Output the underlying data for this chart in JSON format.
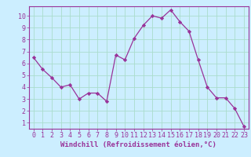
{
  "x": [
    0,
    1,
    2,
    3,
    4,
    5,
    6,
    7,
    8,
    9,
    10,
    11,
    12,
    13,
    14,
    15,
    16,
    17,
    18,
    19,
    20,
    21,
    22,
    23
  ],
  "y": [
    6.5,
    5.5,
    4.8,
    4.0,
    4.2,
    3.0,
    3.5,
    3.5,
    2.8,
    6.7,
    6.3,
    8.1,
    9.2,
    10.0,
    9.8,
    10.5,
    9.5,
    8.7,
    6.3,
    4.0,
    3.1,
    3.1,
    2.2,
    0.7
  ],
  "line_color": "#993399",
  "marker": "D",
  "marker_size": 2.2,
  "bg_color": "#cceeff",
  "grid_color": "#aaddcc",
  "xlabel": "Windchill (Refroidissement éolien,°C)",
  "xlabel_color": "#993399",
  "tick_color": "#993399",
  "spine_color": "#993399",
  "xlim": [
    -0.5,
    23.5
  ],
  "ylim": [
    0.5,
    10.8
  ],
  "yticks": [
    1,
    2,
    3,
    4,
    5,
    6,
    7,
    8,
    9,
    10
  ],
  "xticks": [
    0,
    1,
    2,
    3,
    4,
    5,
    6,
    7,
    8,
    9,
    10,
    11,
    12,
    13,
    14,
    15,
    16,
    17,
    18,
    19,
    20,
    21,
    22,
    23
  ],
  "axis_fontsize": 6.5,
  "tick_fontsize": 6.0
}
